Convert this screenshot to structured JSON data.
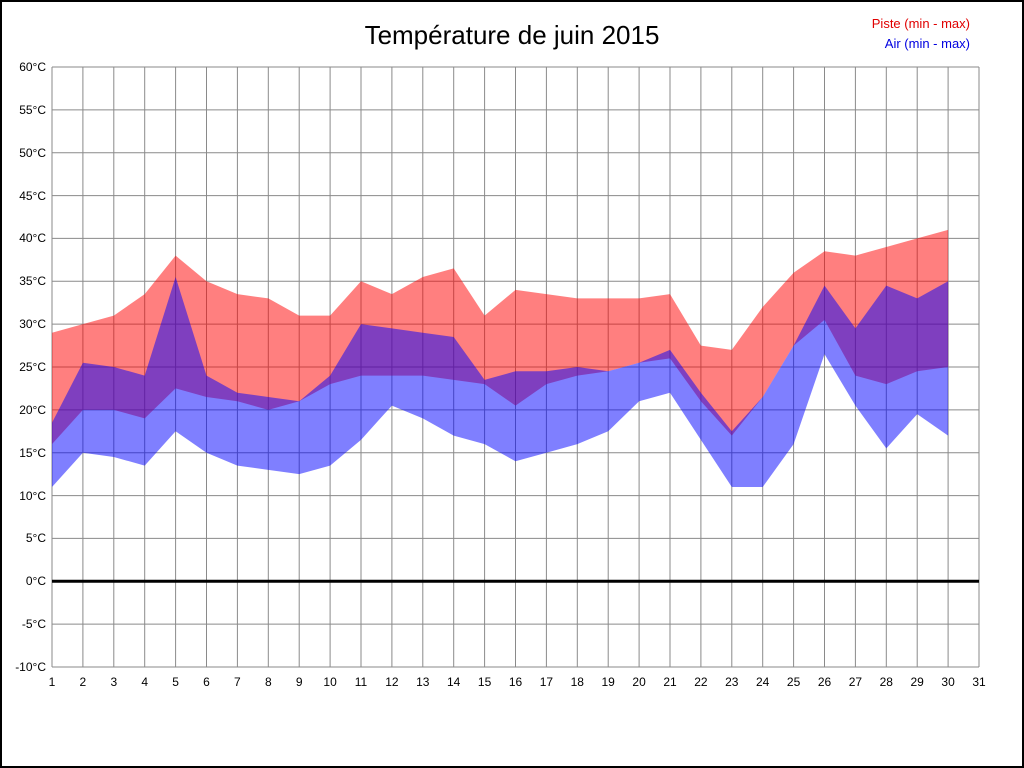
{
  "title": "Température de juin 2015",
  "legend": [
    {
      "label": "Piste (min - max)",
      "color": "#e00000"
    },
    {
      "label": "Air (min - max)",
      "color": "#0000e0"
    }
  ],
  "chart_data": {
    "type": "area",
    "title": "Température de juin 2015",
    "xlabel": "",
    "ylabel": "",
    "xlim": [
      1,
      31
    ],
    "ylim": [
      -10,
      60
    ],
    "grid": true,
    "zero_line": 0,
    "x": [
      1,
      2,
      3,
      4,
      5,
      6,
      7,
      8,
      9,
      10,
      11,
      12,
      13,
      14,
      15,
      16,
      17,
      18,
      19,
      20,
      21,
      22,
      23,
      24,
      25,
      26,
      27,
      28,
      29,
      30
    ],
    "series": [
      {
        "name": "Piste max",
        "values": [
          29,
          30,
          31,
          33.5,
          38,
          35,
          33.5,
          33,
          31,
          31,
          35,
          33.5,
          35.5,
          36.5,
          31,
          34,
          33.5,
          33,
          33,
          33,
          33.5,
          27.5,
          27,
          32,
          36,
          38.5,
          38,
          39,
          40,
          41
        ]
      },
      {
        "name": "Piste min",
        "values": [
          16,
          20,
          20,
          19,
          22.5,
          21.5,
          21,
          20,
          21,
          23,
          24,
          24,
          24,
          23.5,
          23,
          20.5,
          23,
          24,
          24.5,
          25.5,
          26,
          21,
          17,
          21.5,
          27.5,
          30.5,
          24,
          23,
          24.5,
          25
        ]
      },
      {
        "name": "Air max",
        "values": [
          18.5,
          25.5,
          25,
          24,
          35.5,
          24,
          22,
          21.5,
          21,
          24,
          30,
          29.5,
          29,
          28.5,
          23.5,
          24.5,
          24.5,
          25,
          24.5,
          25.5,
          27,
          22,
          17.5,
          21.5,
          27.5,
          34.5,
          29.5,
          34.5,
          33,
          35
        ]
      },
      {
        "name": "Air min",
        "values": [
          11,
          15,
          14.5,
          13.5,
          17.5,
          15,
          13.5,
          13,
          12.5,
          13.5,
          16.5,
          20.5,
          19,
          17,
          16,
          14,
          15,
          16,
          17.5,
          21,
          22,
          16.5,
          11,
          11,
          16,
          26.5,
          20.5,
          15.5,
          19.5,
          17
        ]
      }
    ],
    "band_colors": {
      "piste": "#ff0000",
      "air": "#0000ff",
      "fill_opacity": 0.5
    },
    "grid_color": "#8a8a8a",
    "y_ticks": [
      "60°C",
      "55°C",
      "50°C",
      "45°C",
      "40°C",
      "35°C",
      "30°C",
      "25°C",
      "20°C",
      "15°C",
      "10°C",
      "5°C",
      "0°C",
      "-5°C",
      "-10°C"
    ],
    "x_ticks": [
      "1",
      "2",
      "3",
      "4",
      "5",
      "6",
      "7",
      "8",
      "9",
      "10",
      "11",
      "12",
      "13",
      "14",
      "15",
      "16",
      "17",
      "18",
      "19",
      "20",
      "21",
      "22",
      "23",
      "24",
      "25",
      "26",
      "27",
      "28",
      "29",
      "30",
      "31"
    ]
  }
}
